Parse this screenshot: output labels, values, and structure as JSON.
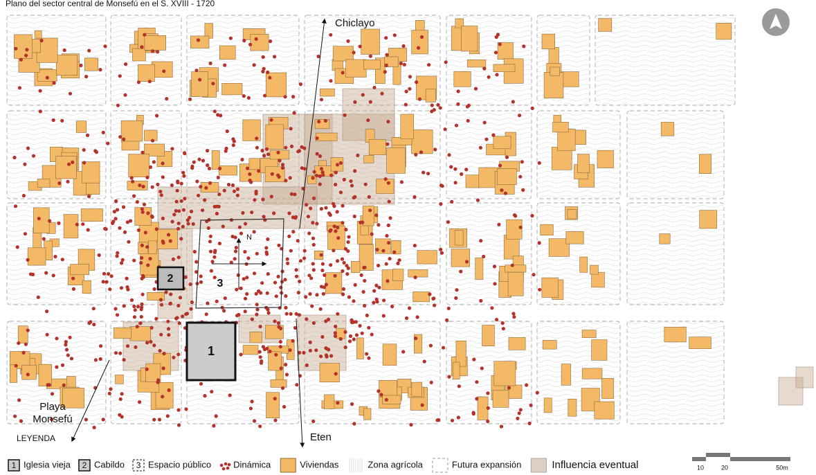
{
  "title": "Plano del sector central de Monsefú en el S. XVIII - 1720",
  "map_labels": {
    "north_city": "Chiclayo",
    "south_city": "Eten",
    "west_destination": [
      "Playa",
      "Monsefú"
    ],
    "north": "N"
  },
  "map_numbers": [
    "1",
    "2",
    "3"
  ],
  "legend": {
    "title": "LEYENDA",
    "items": [
      {
        "key": "1",
        "label": "Iglesia vieja"
      },
      {
        "key": "2",
        "label": "Cabildo"
      },
      {
        "key": "3",
        "label": "Espacio público"
      },
      {
        "label": "Dinámica"
      },
      {
        "label": "Viviendas"
      },
      {
        "label": "Zona agrícola"
      },
      {
        "label": "Futura expansión"
      },
      {
        "label": "Influencia eventual"
      }
    ]
  },
  "scale": [
    "10",
    "20",
    "50m"
  ]
}
